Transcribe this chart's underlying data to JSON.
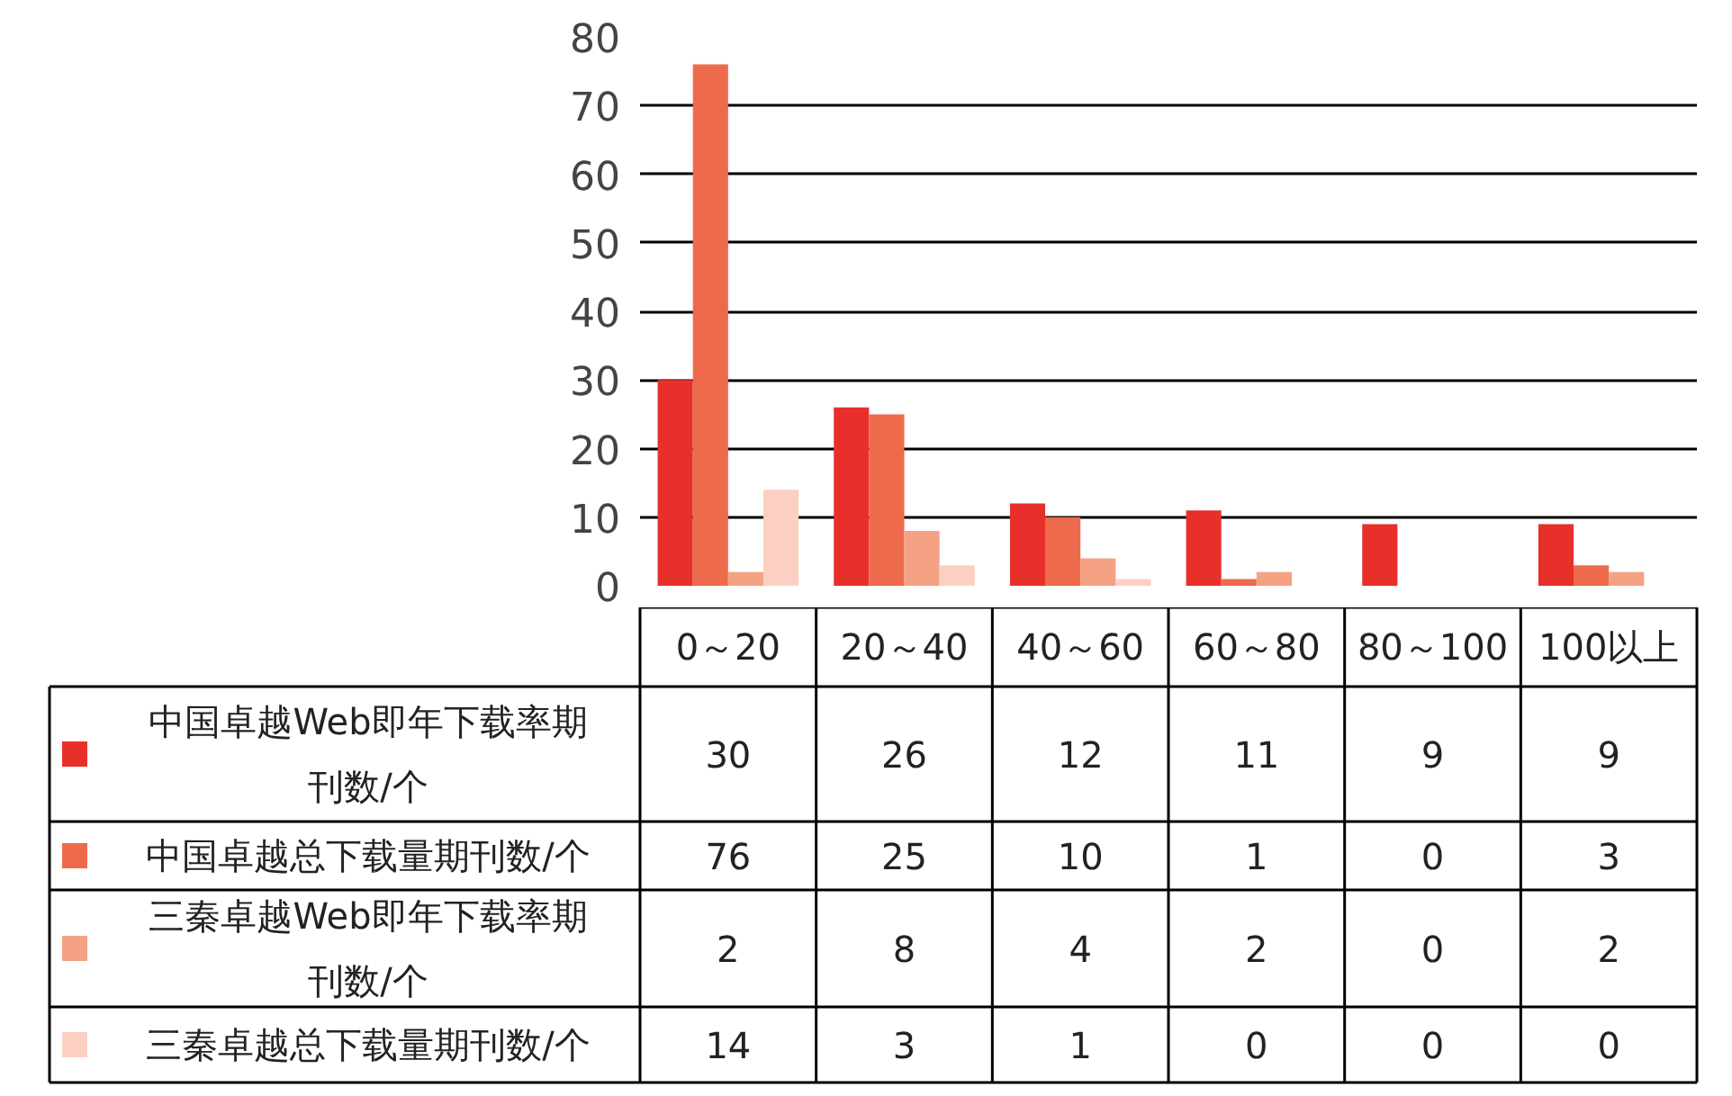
{
  "chart_data": {
    "type": "bar",
    "categories": [
      "0～20",
      "20～40",
      "40～60",
      "60～80",
      "80～100",
      "100以上"
    ],
    "series": [
      {
        "name": "中国卓越Web即年下载率期刊数/个",
        "color": "#e8302a",
        "values": [
          30,
          26,
          12,
          11,
          9,
          9
        ]
      },
      {
        "name": "中国卓越总下载量期刊数/个",
        "color": "#ee6a4c",
        "values": [
          76,
          25,
          10,
          1,
          0,
          3
        ]
      },
      {
        "name": "三秦卓越Web即年下载率期刊数/个",
        "color": "#f4a184",
        "values": [
          2,
          8,
          4,
          2,
          0,
          2
        ]
      },
      {
        "name": "三秦卓越总下载量期刊数/个",
        "color": "#fbd0c2",
        "values": [
          14,
          3,
          1,
          0,
          0,
          0
        ]
      }
    ],
    "ylim": [
      0,
      80
    ],
    "yticks": [
      0,
      10,
      20,
      30,
      40,
      50,
      60,
      70,
      80
    ],
    "grid": "y",
    "data_labels": true,
    "legend": "bottom"
  }
}
